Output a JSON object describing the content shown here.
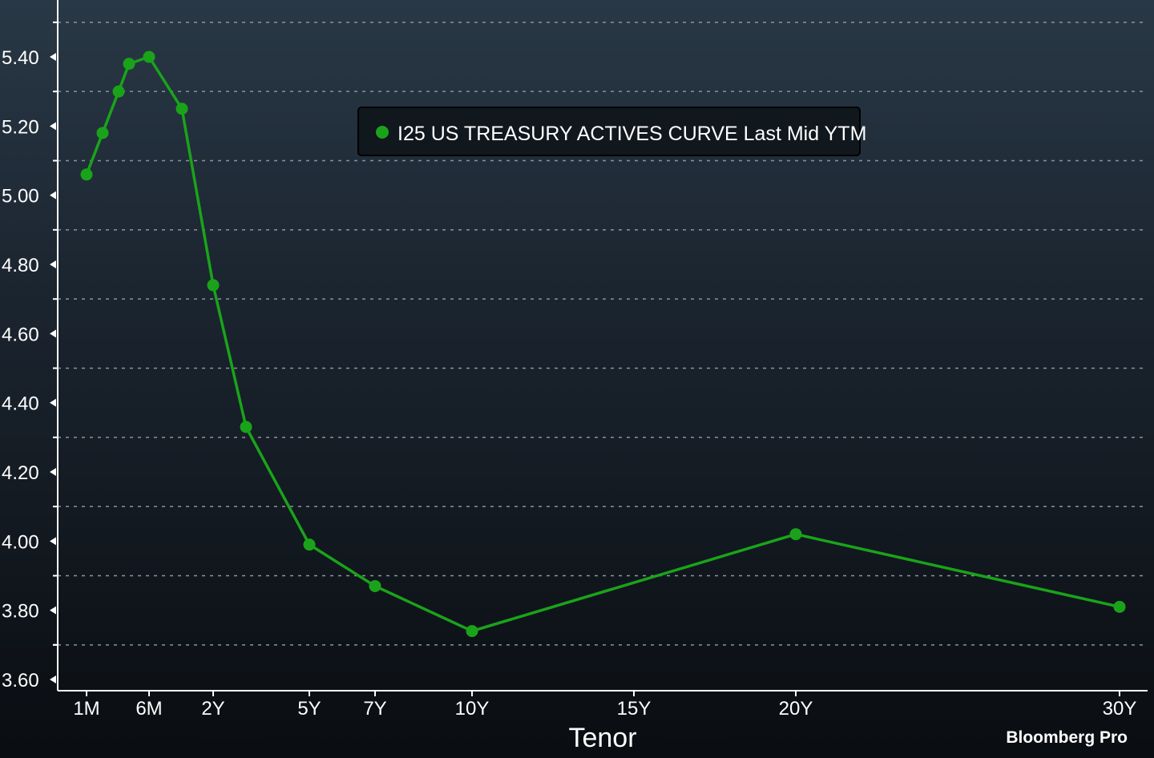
{
  "chart_data": {
    "type": "line",
    "title": "",
    "xlabel": "Tenor",
    "ylabel": "",
    "ylim": [
      3.6,
      5.5
    ],
    "yticks": [
      "3.60",
      "3.80",
      "4.00",
      "4.20",
      "4.40",
      "4.60",
      "4.80",
      "5.00",
      "5.20",
      "5.40"
    ],
    "xticks": [
      "1M",
      "6M",
      "2Y",
      "5Y",
      "7Y",
      "10Y",
      "15Y",
      "20Y",
      "30Y"
    ],
    "grid": true,
    "legend_position": "top-center",
    "series": [
      {
        "name": "I25 US TREASURY ACTIVES CURVE Last Mid YTM",
        "color": "#1aa31a",
        "points": [
          {
            "tenor": "1M",
            "value": 5.06
          },
          {
            "tenor": "2M",
            "value": 5.18
          },
          {
            "tenor": "3M",
            "value": 5.3
          },
          {
            "tenor": "4M",
            "value": 5.38
          },
          {
            "tenor": "6M",
            "value": 5.4
          },
          {
            "tenor": "1Y",
            "value": 5.25
          },
          {
            "tenor": "2Y",
            "value": 4.74
          },
          {
            "tenor": "3Y",
            "value": 4.33
          },
          {
            "tenor": "5Y",
            "value": 3.99
          },
          {
            "tenor": "7Y",
            "value": 3.87
          },
          {
            "tenor": "10Y",
            "value": 3.74
          },
          {
            "tenor": "20Y",
            "value": 4.02
          },
          {
            "tenor": "30Y",
            "value": 3.81
          }
        ]
      }
    ]
  },
  "branding": "Bloomberg Pro"
}
